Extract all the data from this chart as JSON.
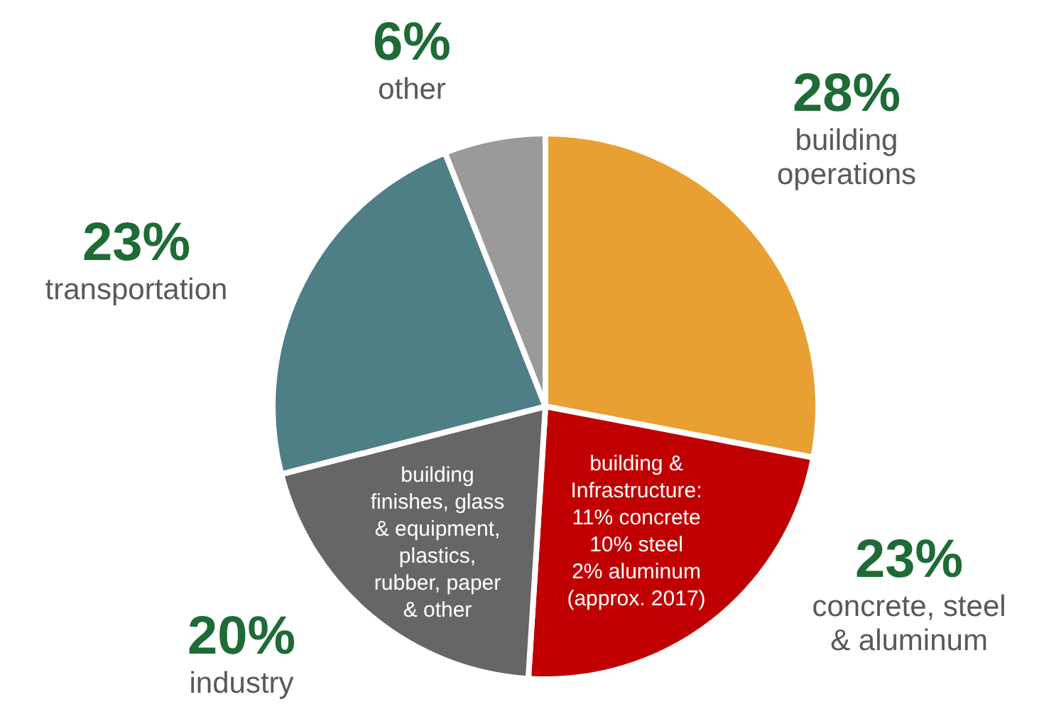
{
  "chart_data": {
    "type": "pie",
    "categories": [
      "building\noperations",
      "concrete, steel\n& aluminum",
      "industry",
      "transportation",
      "other"
    ],
    "values": [
      28,
      23,
      20,
      23,
      6
    ],
    "value_labels": [
      "28%",
      "23%",
      "20%",
      "23%",
      "6%"
    ],
    "colors": [
      "#e8a033",
      "#c00000",
      "#666666",
      "#4f7f86",
      "#9a9a9a"
    ],
    "annotations": [
      "building &\nInfrastructure:\n11% concrete\n10% steel\n2% aluminum\n(approx. 2017)",
      "building\nfinishes, glass\n& equipment,\nplastics,\nrubber, paper\n& other"
    ]
  }
}
